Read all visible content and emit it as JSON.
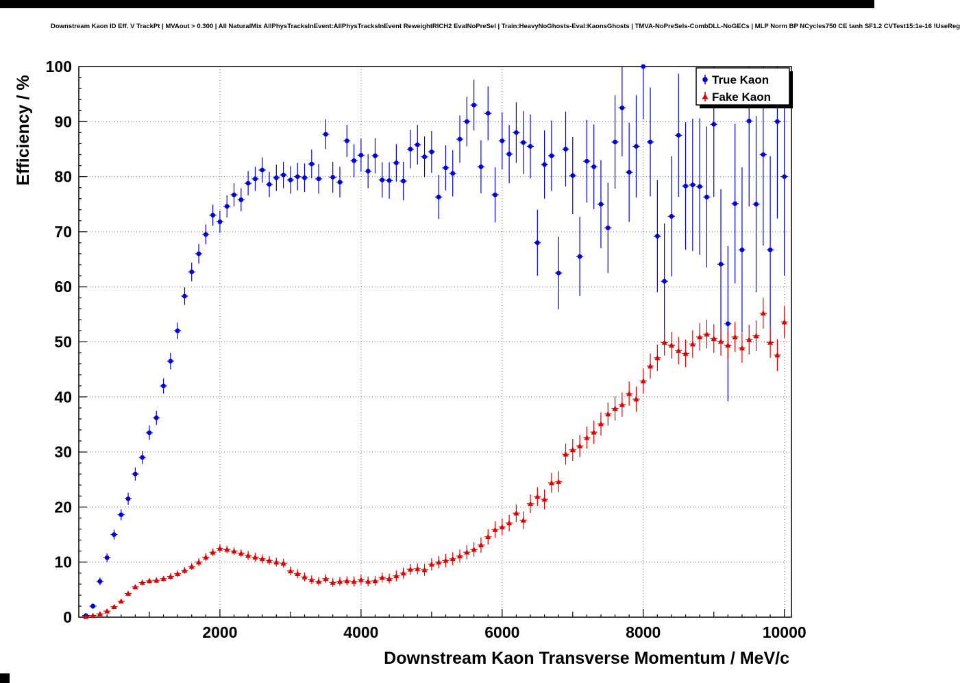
{
  "chart_data": {
    "type": "scatter",
    "title": "Downstream Kaon ID Eff. V TrackPt | MVAout > 0.300 | All NaturalMix AllPhysTracksInEvent:AllPhysTracksInEvent ReweightRICH2 EvalNoPreSel | Train:HeavyNoGhosts-Eval:KaonsGhosts | TMVA-NoPreSels-CombDLL-NoGECs | MLP Norm BP NCycles750 CE tanh SF1.2 CVTest15:1e-16 !UseReg",
    "xlabel": "Downstream Kaon Transverse Momentum / MeV/c",
    "ylabel": "Efficiency / %",
    "xlim": [
      0,
      10100
    ],
    "ylim": [
      0,
      100
    ],
    "x_ticks": [
      2000,
      4000,
      6000,
      8000,
      10000
    ],
    "y_ticks": [
      0,
      10,
      20,
      30,
      40,
      50,
      60,
      70,
      80,
      90,
      100
    ],
    "grid": "dotted",
    "legend": {
      "position": "top-right",
      "entries": [
        {
          "label": "True Kaon",
          "color": "#0000d8",
          "marker": "circle"
        },
        {
          "label": "Fake Kaon",
          "color": "#e00000",
          "marker": "triangle"
        }
      ]
    },
    "series": [
      {
        "name": "True Kaon",
        "color": "#0000d8",
        "marker": "circle",
        "x": {
          "start": 100,
          "step": 100,
          "count": 100
        },
        "xerr": 50,
        "y": [
          0.3,
          2.0,
          6.5,
          10.8,
          15.0,
          18.6,
          21.5,
          26.0,
          29.0,
          33.5,
          36.2,
          42.0,
          46.5,
          52.0,
          58.3,
          62.7,
          66.0,
          69.5,
          73.0,
          71.8,
          74.6,
          76.7,
          75.8,
          78.8,
          79.6,
          81.2,
          78.6,
          79.8,
          80.3,
          79.4,
          80.0,
          79.8,
          82.3,
          79.6,
          87.7,
          79.9,
          79.0,
          86.5,
          82.9,
          83.9,
          81.0,
          83.8,
          79.4,
          79.3,
          82.5,
          79.2,
          85.0,
          85.8,
          83.6,
          84.5,
          76.3,
          81.6,
          80.6,
          86.8,
          90.0,
          93.0,
          81.8,
          91.5,
          76.7,
          86.5,
          84.1,
          88.0,
          86.2,
          85.5,
          68.0,
          82.2,
          83.8,
          62.5,
          85.0,
          80.2,
          65.5,
          82.8,
          81.8,
          75.0,
          70.7,
          86.3,
          92.5,
          80.8,
          85.5,
          100.0,
          86.3,
          69.2,
          61.0,
          72.8,
          87.5,
          78.3,
          78.5,
          78.2,
          76.3,
          89.5,
          64.1,
          53.3,
          75.1,
          66.7,
          90.1,
          75.0,
          84.0,
          66.7,
          90.0,
          80.0
        ],
        "yerr": [
          0.3,
          0.5,
          0.7,
          0.8,
          0.9,
          1.0,
          1.1,
          1.2,
          1.2,
          1.3,
          1.3,
          1.4,
          1.5,
          1.5,
          1.6,
          1.7,
          1.8,
          1.8,
          1.9,
          2.0,
          2.0,
          2.1,
          2.1,
          2.2,
          2.2,
          2.3,
          2.3,
          2.4,
          2.4,
          2.5,
          2.5,
          2.6,
          2.6,
          2.7,
          2.7,
          2.8,
          2.8,
          2.9,
          3.0,
          3.0,
          3.1,
          3.2,
          3.2,
          3.3,
          3.4,
          3.5,
          3.5,
          3.6,
          3.7,
          3.8,
          4.0,
          4.1,
          4.2,
          4.3,
          4.5,
          4.6,
          4.8,
          4.9,
          5.0,
          5.2,
          5.3,
          5.5,
          5.7,
          5.8,
          6.0,
          6.2,
          6.4,
          6.6,
          6.8,
          7.0,
          7.2,
          7.5,
          7.7,
          8.0,
          8.2,
          8.5,
          8.8,
          9.0,
          9.3,
          9.6,
          9.9,
          10.2,
          10.5,
          10.9,
          11.2,
          11.6,
          12.0,
          12.4,
          12.8,
          13.2,
          13.6,
          14.1,
          14.5,
          15.0,
          15.5,
          16.0,
          16.5,
          17.0,
          17.6,
          18.0
        ]
      },
      {
        "name": "Fake Kaon",
        "color": "#e00000",
        "marker": "triangle",
        "x": {
          "start": 100,
          "step": 100,
          "count": 100
        },
        "xerr": 50,
        "y": [
          0.1,
          0.3,
          0.6,
          1.1,
          1.9,
          2.9,
          4.3,
          5.5,
          6.3,
          6.6,
          6.7,
          7.0,
          7.4,
          7.9,
          8.5,
          9.2,
          10.0,
          10.9,
          11.8,
          12.5,
          12.3,
          12.0,
          11.6,
          11.2,
          10.9,
          10.6,
          10.3,
          10.0,
          9.8,
          8.4,
          7.9,
          7.3,
          6.8,
          6.5,
          7.0,
          6.3,
          6.5,
          6.6,
          6.5,
          6.8,
          6.5,
          6.6,
          7.2,
          7.0,
          7.5,
          8.0,
          8.7,
          8.8,
          8.6,
          9.6,
          10.0,
          10.3,
          10.6,
          11.1,
          11.8,
          12.3,
          13.1,
          14.6,
          15.9,
          16.4,
          17.1,
          18.9,
          17.6,
          20.6,
          21.9,
          21.4,
          24.4,
          24.6,
          29.6,
          30.4,
          31.1,
          32.6,
          33.6,
          35.1,
          36.9,
          37.9,
          38.6,
          40.6,
          39.6,
          42.9,
          45.6,
          47.1,
          49.9,
          49.4,
          48.4,
          47.9,
          49.6,
          50.9,
          51.4,
          50.6,
          50.1,
          49.4,
          50.9,
          48.9,
          50.4,
          51.1,
          55.2,
          49.9,
          47.6,
          53.6
        ],
        "yerr": [
          0.1,
          0.1,
          0.2,
          0.2,
          0.3,
          0.3,
          0.4,
          0.4,
          0.5,
          0.5,
          0.5,
          0.5,
          0.6,
          0.6,
          0.6,
          0.6,
          0.7,
          0.7,
          0.7,
          0.7,
          0.7,
          0.7,
          0.7,
          0.8,
          0.8,
          0.8,
          0.8,
          0.8,
          0.8,
          0.8,
          0.8,
          0.8,
          0.8,
          0.8,
          0.8,
          0.8,
          0.8,
          0.8,
          0.9,
          0.9,
          0.9,
          0.9,
          0.9,
          0.9,
          1.0,
          1.0,
          1.0,
          1.0,
          1.1,
          1.1,
          1.1,
          1.2,
          1.2,
          1.2,
          1.3,
          1.3,
          1.4,
          1.4,
          1.5,
          1.5,
          1.5,
          1.6,
          1.6,
          1.7,
          1.7,
          1.8,
          1.8,
          1.9,
          1.9,
          2.0,
          2.0,
          2.0,
          2.1,
          2.1,
          2.1,
          2.2,
          2.2,
          2.2,
          2.3,
          2.3,
          2.3,
          2.4,
          2.4,
          2.4,
          2.5,
          2.5,
          2.5,
          2.5,
          2.6,
          2.6,
          2.6,
          2.6,
          2.7,
          2.7,
          2.7,
          2.8,
          2.8,
          2.8,
          2.9,
          2.9
        ]
      }
    ]
  }
}
